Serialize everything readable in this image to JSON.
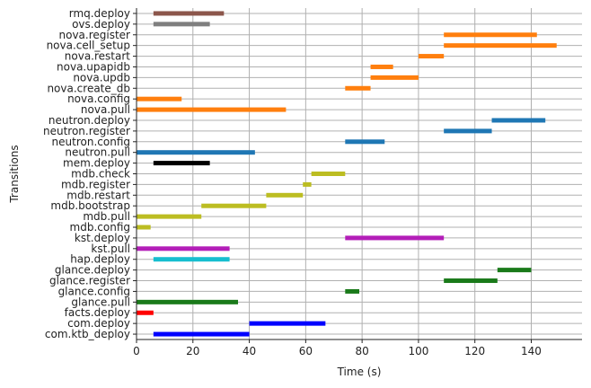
{
  "chart_data": {
    "type": "gantt",
    "xlabel": "Time (s)",
    "ylabel": "Transitions",
    "xlim": [
      0,
      158
    ],
    "xticks": [
      0,
      20,
      40,
      60,
      80,
      100,
      120,
      140
    ],
    "grid": true,
    "tasks": [
      {
        "name": "rmq.deploy",
        "start": 6,
        "end": 31,
        "color": "#8c564b"
      },
      {
        "name": "ovs.deploy",
        "start": 6,
        "end": 26,
        "color": "#7f7f7f"
      },
      {
        "name": "nova.register",
        "start": 109,
        "end": 142,
        "color": "#ff7f0e"
      },
      {
        "name": "nova.cell_setup",
        "start": 109,
        "end": 149,
        "color": "#ff7f0e"
      },
      {
        "name": "nova.restart",
        "start": 100,
        "end": 109,
        "color": "#ff7f0e"
      },
      {
        "name": "nova.upapidb",
        "start": 83,
        "end": 91,
        "color": "#ff7f0e"
      },
      {
        "name": "nova.updb",
        "start": 83,
        "end": 100,
        "color": "#ff7f0e"
      },
      {
        "name": "nova.create_db",
        "start": 74,
        "end": 83,
        "color": "#ff7f0e"
      },
      {
        "name": "nova.config",
        "start": 0,
        "end": 16,
        "color": "#ff7f0e"
      },
      {
        "name": "nova.pull",
        "start": 0,
        "end": 53,
        "color": "#ff7f0e"
      },
      {
        "name": "neutron.deploy",
        "start": 126,
        "end": 145,
        "color": "#1f77b4"
      },
      {
        "name": "neutron.register",
        "start": 109,
        "end": 126,
        "color": "#1f77b4"
      },
      {
        "name": "neutron.config",
        "start": 74,
        "end": 88,
        "color": "#1f77b4"
      },
      {
        "name": "neutron.pull",
        "start": 0,
        "end": 42,
        "color": "#1f77b4"
      },
      {
        "name": "mem.deploy",
        "start": 6,
        "end": 26,
        "color": "#000000"
      },
      {
        "name": "mdb.check",
        "start": 62,
        "end": 74,
        "color": "#bcbd22"
      },
      {
        "name": "mdb.register",
        "start": 59,
        "end": 62,
        "color": "#bcbd22"
      },
      {
        "name": "mdb.restart",
        "start": 46,
        "end": 59,
        "color": "#bcbd22"
      },
      {
        "name": "mdb.bootstrap",
        "start": 23,
        "end": 46,
        "color": "#bcbd22"
      },
      {
        "name": "mdb.pull",
        "start": 0,
        "end": 23,
        "color": "#bcbd22"
      },
      {
        "name": "mdb.config",
        "start": 0,
        "end": 5,
        "color": "#bcbd22"
      },
      {
        "name": "kst.deploy",
        "start": 74,
        "end": 109,
        "color": "#b31eb8"
      },
      {
        "name": "kst.pull",
        "start": 0,
        "end": 33,
        "color": "#b31eb8"
      },
      {
        "name": "hap.deploy",
        "start": 6,
        "end": 33,
        "color": "#17becf"
      },
      {
        "name": "glance.deploy",
        "start": 128,
        "end": 140,
        "color": "#1a7a1a"
      },
      {
        "name": "glance.register",
        "start": 109,
        "end": 128,
        "color": "#1a7a1a"
      },
      {
        "name": "glance.config",
        "start": 74,
        "end": 79,
        "color": "#1a7a1a"
      },
      {
        "name": "glance.pull",
        "start": 0,
        "end": 36,
        "color": "#1a7a1a"
      },
      {
        "name": "facts.deploy",
        "start": 0,
        "end": 6,
        "color": "#ff0000"
      },
      {
        "name": "com.deploy",
        "start": 40,
        "end": 67,
        "color": "#0000ff"
      },
      {
        "name": "com.ktb_deploy",
        "start": 6,
        "end": 40,
        "color": "#0000ff"
      }
    ]
  }
}
